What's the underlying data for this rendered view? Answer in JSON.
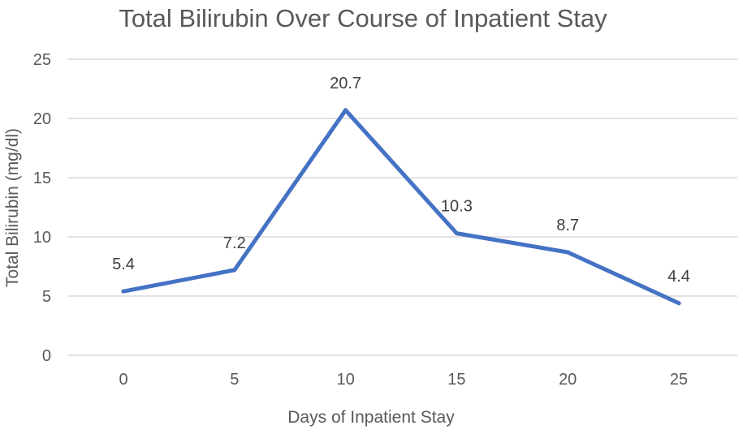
{
  "chart_data": {
    "type": "line",
    "title": "Total Bilirubin Over Course of Inpatient Stay",
    "xlabel": "Days of Inpatient Stay",
    "ylabel": "Total Bilirubin (mg/dl)",
    "x": [
      0,
      5,
      10,
      15,
      20,
      25
    ],
    "series": [
      {
        "values": [
          5.4,
          7.2,
          20.7,
          10.3,
          8.7,
          4.4
        ],
        "labels": [
          "5.4",
          "7.2",
          "20.7",
          "10.3",
          "8.7",
          "4.4"
        ],
        "color": "#4472C4"
      }
    ],
    "xticks": [
      "0",
      "5",
      "10",
      "15",
      "20",
      "25"
    ],
    "yticks": [
      "0",
      "5",
      "10",
      "15",
      "20",
      "25"
    ],
    "ylim": [
      0,
      25
    ],
    "grid": true,
    "legend": "none"
  }
}
